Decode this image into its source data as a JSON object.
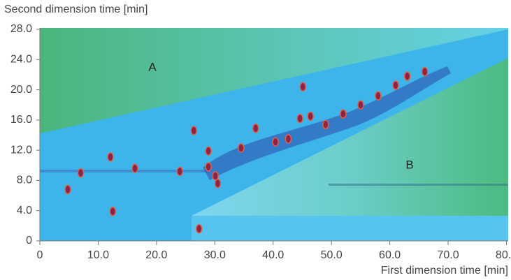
{
  "chart_data": {
    "type": "scatter",
    "y_label": "Second dimension time [min]",
    "x_label": "First dimension time [min]",
    "annotations": [
      "A",
      "B"
    ],
    "xlim": [
      0,
      80.3
    ],
    "ylim": [
      0,
      28
    ],
    "xticks": [
      0,
      {
        "value": 10,
        "label": "10.0"
      },
      {
        "value": 20,
        "label": "20.0"
      },
      {
        "value": 30,
        "label": "30.0"
      },
      {
        "value": 40,
        "label": "40.0"
      },
      {
        "value": 50,
        "label": "50.0"
      },
      {
        "value": 60,
        "label": "60.0"
      },
      {
        "value": 70,
        "label": "70.0"
      },
      {
        "value": 80,
        "label": "80.0"
      }
    ],
    "yticks": [
      0,
      {
        "value": 4,
        "label": "4.0"
      },
      {
        "value": 8,
        "label": "8.0"
      },
      {
        "value": 12,
        "label": "12.0"
      },
      {
        "value": 16,
        "label": "16.0"
      },
      {
        "value": 20,
        "label": "20.0"
      },
      {
        "value": 24,
        "label": "24.0"
      },
      {
        "value": 28,
        "label": "28.0"
      }
    ],
    "color": "#8a2448",
    "x": [
      27.3,
      12.5,
      4.8,
      12.1,
      16.3,
      26.4,
      28.9,
      28.9,
      30.1,
      30.5,
      45.1,
      40.4,
      42.6,
      46.4,
      44.6,
      34.5,
      37.0,
      49.0,
      52.0,
      55.0,
      58.0,
      61.0,
      63.0,
      66.0,
      24.0,
      7.0
    ],
    "values": [
      1.6,
      3.9,
      6.8,
      11.1,
      9.6,
      14.6,
      11.9,
      9.8,
      8.6,
      7.6,
      20.4,
      13.1,
      13.5,
      16.5,
      16.2,
      12.3,
      14.9,
      15.4,
      16.8,
      18.0,
      19.2,
      20.6,
      21.8,
      22.4,
      9.2,
      9.0
    ]
  }
}
